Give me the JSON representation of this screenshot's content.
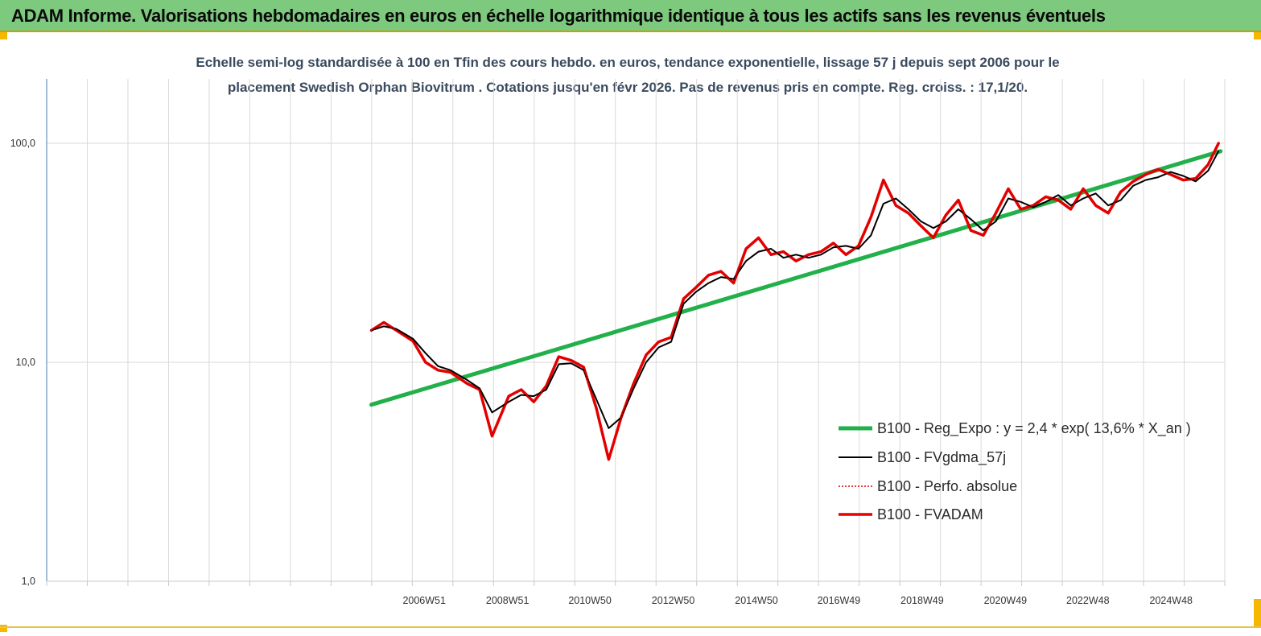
{
  "header": {
    "title": "ADAM Informe. Valorisations hebdomadaires en euros en échelle logarithmique identique à tous les actifs sans les revenus éventuels"
  },
  "colors": {
    "header_bg": "#7dc97d",
    "regression": "#22b04a",
    "smoothed": "#000000",
    "perfo": "#e00000",
    "fvadam": "#e60000",
    "grid": "#d9d9d9"
  },
  "chart_data": {
    "type": "line",
    "title_line1": "Echelle semi-log standardisée à 100 en Tfin des cours hebdo. en euros, tendance exponentielle, lissage 57 j depuis sept 2006 pour le",
    "title_line2": "placement Swedish Orphan Biovitrum . Cotations jusqu'en févr 2026. Pas de revenus pris en compte. Reg. croiss. : 17,1/20.",
    "y_scale": "log",
    "ylim": [
      1,
      100
    ],
    "y_ticks": [
      "1,0",
      "10,0",
      "100,0"
    ],
    "xlim": [
      1997.9,
      2026.2
    ],
    "x_ticks": [
      {
        "label": "2006W51",
        "year": 2006.97
      },
      {
        "label": "2008W51",
        "year": 2008.97
      },
      {
        "label": "2010W50",
        "year": 2010.95
      },
      {
        "label": "2012W50",
        "year": 2012.95
      },
      {
        "label": "2014W50",
        "year": 2014.95
      },
      {
        "label": "2016W49",
        "year": 2016.93
      },
      {
        "label": "2018W49",
        "year": 2018.93
      },
      {
        "label": "2020W49",
        "year": 2020.93
      },
      {
        "label": "2022W48",
        "year": 2022.91
      },
      {
        "label": "2024W48",
        "year": 2024.91
      }
    ],
    "grid": true,
    "legend_position": "right",
    "series": [
      {
        "name": "B100 - Reg_Expo : y = 2,4 * exp( 13,6% *  X_an )",
        "style": "solid-thick",
        "color": "#22b04a",
        "x": [
          2005.7,
          2026.1
        ],
        "y": [
          6.4,
          92
        ]
      },
      {
        "name": "B100 - FVgdma_57j",
        "style": "solid-thin",
        "color": "#000000",
        "x": [
          2005.7,
          2006.0,
          2006.3,
          2006.7,
          2007.0,
          2007.3,
          2007.6,
          2008.0,
          2008.3,
          2008.6,
          2009.0,
          2009.3,
          2009.6,
          2009.9,
          2010.2,
          2010.5,
          2010.8,
          2011.1,
          2011.4,
          2011.7,
          2012.0,
          2012.3,
          2012.6,
          2012.9,
          2013.2,
          2013.5,
          2013.8,
          2014.1,
          2014.4,
          2014.7,
          2015.0,
          2015.3,
          2015.6,
          2015.9,
          2016.2,
          2016.5,
          2016.8,
          2017.1,
          2017.4,
          2017.7,
          2018.0,
          2018.3,
          2018.6,
          2018.9,
          2019.2,
          2019.5,
          2019.8,
          2020.1,
          2020.4,
          2020.7,
          2021.0,
          2021.3,
          2021.6,
          2021.9,
          2022.2,
          2022.5,
          2022.8,
          2023.1,
          2023.4,
          2023.7,
          2024.0,
          2024.3,
          2024.6,
          2024.9,
          2025.2,
          2025.5,
          2025.8,
          2026.05
        ],
        "y": [
          14.0,
          14.6,
          14.2,
          12.8,
          11.0,
          9.6,
          9.2,
          8.3,
          7.6,
          5.9,
          6.6,
          7.1,
          7.0,
          7.5,
          9.8,
          9.9,
          9.2,
          6.8,
          5.0,
          5.6,
          7.6,
          10.0,
          11.7,
          12.4,
          18.5,
          21.0,
          23.0,
          24.5,
          24.0,
          29.0,
          32.0,
          33.0,
          30.0,
          31.0,
          30.0,
          31.0,
          33.5,
          34.0,
          33.0,
          38.0,
          53.0,
          56.0,
          50.0,
          44.0,
          41.0,
          44.0,
          50.0,
          45.0,
          40.0,
          44.0,
          56.0,
          54.0,
          51.0,
          54.0,
          58.0,
          52.0,
          56.0,
          59.0,
          52.0,
          55.0,
          64.0,
          68.0,
          70.0,
          74.0,
          71.0,
          67.0,
          75.0,
          92.0
        ]
      },
      {
        "name": "B100 - Perfo. absolue",
        "style": "dotted",
        "color": "#e00000",
        "x": [
          2005.7,
          2006.0,
          2006.3,
          2006.7,
          2007.0,
          2007.3,
          2007.6,
          2008.0,
          2008.3,
          2008.6,
          2009.0,
          2009.3,
          2009.6,
          2009.9,
          2010.2,
          2010.5,
          2010.8,
          2011.1,
          2011.4,
          2011.7,
          2012.0,
          2012.3,
          2012.6,
          2012.9,
          2013.2,
          2013.5,
          2013.8,
          2014.1,
          2014.4,
          2014.7,
          2015.0,
          2015.3,
          2015.6,
          2015.9,
          2016.2,
          2016.5,
          2016.8,
          2017.1,
          2017.4,
          2017.7,
          2018.0,
          2018.3,
          2018.6,
          2018.9,
          2019.2,
          2019.5,
          2019.8,
          2020.1,
          2020.4,
          2020.7,
          2021.0,
          2021.3,
          2021.6,
          2021.9,
          2022.2,
          2022.5,
          2022.8,
          2023.1,
          2023.4,
          2023.7,
          2024.0,
          2024.3,
          2024.6,
          2024.9,
          2025.2,
          2025.5,
          2025.8,
          2026.05
        ],
        "y": [
          14.0,
          15.2,
          14.0,
          12.5,
          10.0,
          9.2,
          9.0,
          8.0,
          7.5,
          4.6,
          7.0,
          7.5,
          6.6,
          7.8,
          10.6,
          10.2,
          9.5,
          6.2,
          3.6,
          5.6,
          8.0,
          10.8,
          12.4,
          13.0,
          19.5,
          22.0,
          25.0,
          26.0,
          23.0,
          33.0,
          37.0,
          31.0,
          32.0,
          29.0,
          31.0,
          32.0,
          35.0,
          31.0,
          34.0,
          46.0,
          68.0,
          52.0,
          48.0,
          42.0,
          37.0,
          47.0,
          55.0,
          40.0,
          38.0,
          48.0,
          62.0,
          50.0,
          52.0,
          57.0,
          55.0,
          50.0,
          62.0,
          52.0,
          48.0,
          60.0,
          67.0,
          72.0,
          76.0,
          72.0,
          68.0,
          69.0,
          80.0,
          100.0
        ]
      },
      {
        "name": "B100 - FVADAM",
        "style": "solid-thick",
        "color": "#e60000",
        "x": [
          2005.7,
          2006.0,
          2006.3,
          2006.7,
          2007.0,
          2007.3,
          2007.6,
          2008.0,
          2008.3,
          2008.6,
          2009.0,
          2009.3,
          2009.6,
          2009.9,
          2010.2,
          2010.5,
          2010.8,
          2011.1,
          2011.4,
          2011.7,
          2012.0,
          2012.3,
          2012.6,
          2012.9,
          2013.2,
          2013.5,
          2013.8,
          2014.1,
          2014.4,
          2014.7,
          2015.0,
          2015.3,
          2015.6,
          2015.9,
          2016.2,
          2016.5,
          2016.8,
          2017.1,
          2017.4,
          2017.7,
          2018.0,
          2018.3,
          2018.6,
          2018.9,
          2019.2,
          2019.5,
          2019.8,
          2020.1,
          2020.4,
          2020.7,
          2021.0,
          2021.3,
          2021.6,
          2021.9,
          2022.2,
          2022.5,
          2022.8,
          2023.1,
          2023.4,
          2023.7,
          2024.0,
          2024.3,
          2024.6,
          2024.9,
          2025.2,
          2025.5,
          2025.8,
          2026.05
        ],
        "y": [
          14.0,
          15.2,
          14.0,
          12.5,
          10.0,
          9.2,
          9.0,
          8.0,
          7.5,
          4.6,
          7.0,
          7.5,
          6.6,
          7.8,
          10.6,
          10.2,
          9.5,
          6.2,
          3.6,
          5.6,
          8.0,
          10.8,
          12.4,
          13.0,
          19.5,
          22.0,
          25.0,
          26.0,
          23.0,
          33.0,
          37.0,
          31.0,
          32.0,
          29.0,
          31.0,
          32.0,
          35.0,
          31.0,
          34.0,
          46.0,
          68.0,
          52.0,
          48.0,
          42.0,
          37.0,
          47.0,
          55.0,
          40.0,
          38.0,
          48.0,
          62.0,
          50.0,
          52.0,
          57.0,
          55.0,
          50.0,
          62.0,
          52.0,
          48.0,
          60.0,
          67.0,
          72.0,
          76.0,
          72.0,
          68.0,
          69.0,
          80.0,
          100.0
        ]
      }
    ]
  }
}
